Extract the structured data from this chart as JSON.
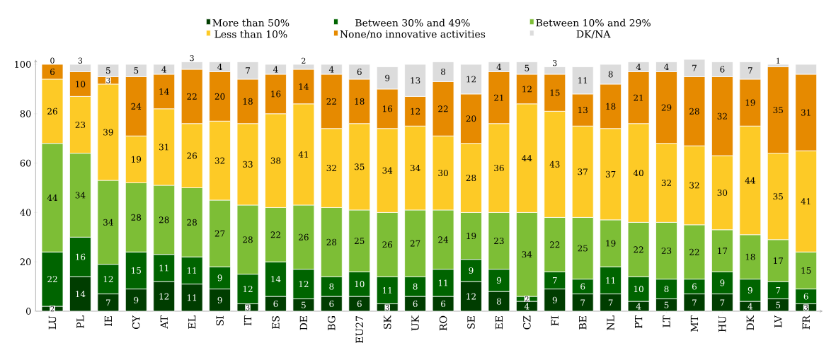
{
  "chart_data": {
    "type": "bar",
    "stacked": true,
    "data_labels": true,
    "legend": "top",
    "ylim": [
      0,
      102
    ],
    "yticks": [
      0,
      20,
      40,
      60,
      80,
      100
    ],
    "categories": [
      "LU",
      "PL",
      "IE",
      "CY",
      "AT",
      "EL",
      "SI",
      "IT",
      "ES",
      "DE",
      "BG",
      "EU27",
      "SK",
      "UK",
      "RO",
      "SE",
      "EE",
      "CZ",
      "FI",
      "BE",
      "NL",
      "PT",
      "LT",
      "MT",
      "HU",
      "DK",
      "LV",
      "FR"
    ],
    "series": [
      {
        "name": "More than 50%",
        "color": "#003d00",
        "values": [
          2,
          14,
          7,
          9,
          12,
          11,
          9,
          3,
          6,
          5,
          6,
          6,
          3,
          6,
          6,
          12,
          8,
          4,
          9,
          7,
          7,
          4,
          5,
          7,
          7,
          4,
          5,
          3
        ]
      },
      {
        "name": "Between 30% and 49%",
        "color": "#006400",
        "values": [
          22,
          16,
          12,
          15,
          11,
          11,
          9,
          12,
          14,
          12,
          8,
          10,
          11,
          8,
          11,
          9,
          9,
          2,
          7,
          6,
          11,
          10,
          8,
          6,
          9,
          9,
          7,
          6
        ]
      },
      {
        "name": "Between 10% and 29%",
        "color": "#7dbe36",
        "values": [
          44,
          34,
          34,
          28,
          28,
          28,
          27,
          28,
          22,
          26,
          28,
          25,
          26,
          27,
          24,
          19,
          23,
          34,
          22,
          25,
          19,
          22,
          23,
          22,
          17,
          18,
          17,
          15
        ]
      },
      {
        "name": "Less than 10%",
        "color": "#fdca26",
        "values": [
          26,
          23,
          39,
          19,
          31,
          26,
          32,
          33,
          38,
          41,
          32,
          35,
          34,
          34,
          30,
          28,
          36,
          44,
          43,
          37,
          37,
          40,
          32,
          32,
          30,
          44,
          35,
          41
        ]
      },
      {
        "name": "None/no innovative activities",
        "color": "#e68a00",
        "values": [
          6,
          10,
          3,
          24,
          14,
          22,
          20,
          18,
          16,
          14,
          22,
          18,
          16,
          12,
          22,
          20,
          21,
          12,
          15,
          13,
          18,
          21,
          29,
          28,
          32,
          19,
          35,
          31
        ]
      },
      {
        "name": "DK/NA",
        "color": "#dcdcdc",
        "values": [
          0,
          3,
          5,
          5,
          4,
          3,
          4,
          7,
          4,
          2,
          4,
          6,
          9,
          13,
          8,
          12,
          4,
          5,
          3,
          11,
          8,
          4,
          4,
          7,
          6,
          7,
          1,
          4
        ],
        "value_labels": [
          "0",
          "3",
          "5",
          "5",
          "4",
          "3",
          "4",
          "7",
          "4",
          "2",
          "4",
          "6",
          "9",
          "13",
          "8",
          "12",
          "4",
          "5",
          "3",
          "11",
          "8",
          "4",
          "4",
          "7",
          "6",
          "7",
          "1",
          null
        ]
      }
    ]
  }
}
